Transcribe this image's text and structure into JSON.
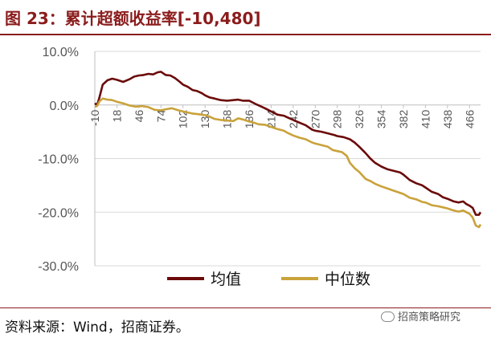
{
  "title": "图 23：累计超额收益率[-10,480]",
  "source": "资料来源：Wind，招商证券。",
  "watermark": {
    "text": "招商策略研究",
    "icon": "wechat-icon"
  },
  "colors": {
    "title": "#8b1c1c",
    "mean": "#6b0a0a",
    "median": "#c9a23a",
    "grid": "#d9d9d9",
    "axis": "#bfbfbf"
  },
  "chart_data": {
    "type": "line",
    "title": "",
    "xlabel": "",
    "ylabel": "",
    "xlim": [
      -10,
      480
    ],
    "ylim": [
      -30,
      10
    ],
    "y_unit": "%",
    "y_ticks": [
      10,
      0,
      -10,
      -20,
      -30
    ],
    "y_tick_labels": [
      "10.0%",
      "0.0%",
      "-10.0%",
      "-20.0%",
      "-30.0%"
    ],
    "x_ticks": [
      -10,
      18,
      46,
      74,
      102,
      130,
      158,
      186,
      214,
      242,
      270,
      298,
      326,
      354,
      382,
      410,
      438,
      466
    ],
    "x_tick_labels": [
      "-10",
      "18",
      "46",
      "74",
      "102",
      "130",
      "158",
      "186",
      "214",
      "242",
      "270",
      "298",
      "326",
      "354",
      "382",
      "410",
      "438",
      "466"
    ],
    "grid": {
      "horizontal": true,
      "vertical": false
    },
    "legend": {
      "position": "bottom"
    },
    "series": [
      {
        "name": "均值",
        "color": "#6b0a0a",
        "points": [
          [
            -10,
            0.3
          ],
          [
            -7,
            0.0
          ],
          [
            -4,
            1.5
          ],
          [
            0,
            3.8
          ],
          [
            6,
            4.6
          ],
          [
            12,
            4.9
          ],
          [
            18,
            4.7
          ],
          [
            26,
            4.3
          ],
          [
            34,
            4.8
          ],
          [
            40,
            5.3
          ],
          [
            46,
            5.5
          ],
          [
            52,
            5.6
          ],
          [
            58,
            5.8
          ],
          [
            64,
            5.7
          ],
          [
            70,
            6.1
          ],
          [
            74,
            6.2
          ],
          [
            80,
            5.6
          ],
          [
            86,
            5.5
          ],
          [
            92,
            5.0
          ],
          [
            98,
            4.3
          ],
          [
            102,
            3.8
          ],
          [
            108,
            3.4
          ],
          [
            114,
            2.8
          ],
          [
            120,
            2.6
          ],
          [
            126,
            2.2
          ],
          [
            130,
            1.8
          ],
          [
            136,
            1.4
          ],
          [
            142,
            1.2
          ],
          [
            150,
            0.9
          ],
          [
            158,
            0.8
          ],
          [
            166,
            0.9
          ],
          [
            172,
            1.0
          ],
          [
            178,
            0.8
          ],
          [
            186,
            0.8
          ],
          [
            194,
            0.2
          ],
          [
            200,
            -0.2
          ],
          [
            206,
            -0.6
          ],
          [
            214,
            -1.2
          ],
          [
            222,
            -1.8
          ],
          [
            230,
            -2.0
          ],
          [
            236,
            -2.4
          ],
          [
            242,
            -2.8
          ],
          [
            250,
            -3.3
          ],
          [
            258,
            -3.8
          ],
          [
            266,
            -4.6
          ],
          [
            270,
            -4.8
          ],
          [
            278,
            -5.0
          ],
          [
            286,
            -5.3
          ],
          [
            294,
            -5.6
          ],
          [
            298,
            -5.8
          ],
          [
            306,
            -6.0
          ],
          [
            314,
            -6.4
          ],
          [
            320,
            -7.0
          ],
          [
            326,
            -7.8
          ],
          [
            334,
            -9.0
          ],
          [
            340,
            -10.0
          ],
          [
            346,
            -10.8
          ],
          [
            354,
            -11.5
          ],
          [
            362,
            -12.0
          ],
          [
            370,
            -12.3
          ],
          [
            378,
            -12.6
          ],
          [
            382,
            -13.0
          ],
          [
            390,
            -14.0
          ],
          [
            398,
            -14.6
          ],
          [
            406,
            -15.0
          ],
          [
            410,
            -15.4
          ],
          [
            418,
            -16.2
          ],
          [
            426,
            -16.6
          ],
          [
            432,
            -17.2
          ],
          [
            438,
            -17.5
          ],
          [
            446,
            -18.0
          ],
          [
            452,
            -18.2
          ],
          [
            458,
            -18.0
          ],
          [
            462,
            -18.5
          ],
          [
            466,
            -18.8
          ],
          [
            470,
            -19.2
          ],
          [
            474,
            -20.5
          ],
          [
            478,
            -20.5
          ],
          [
            480,
            -20.0
          ]
        ]
      },
      {
        "name": "中位数",
        "color": "#c9a23a",
        "points": [
          [
            -10,
            -0.3
          ],
          [
            -7,
            -0.2
          ],
          [
            -4,
            0.7
          ],
          [
            0,
            1.2
          ],
          [
            6,
            1.0
          ],
          [
            12,
            0.9
          ],
          [
            18,
            0.6
          ],
          [
            26,
            0.3
          ],
          [
            34,
            -0.1
          ],
          [
            42,
            -0.3
          ],
          [
            50,
            -0.2
          ],
          [
            58,
            -0.4
          ],
          [
            66,
            -0.9
          ],
          [
            74,
            -1.0
          ],
          [
            80,
            -0.8
          ],
          [
            88,
            -0.6
          ],
          [
            96,
            -1.0
          ],
          [
            102,
            -1.2
          ],
          [
            108,
            -1.4
          ],
          [
            114,
            -1.6
          ],
          [
            120,
            -1.7
          ],
          [
            126,
            -1.8
          ],
          [
            130,
            -1.9
          ],
          [
            136,
            -2.2
          ],
          [
            142,
            -2.6
          ],
          [
            150,
            -2.8
          ],
          [
            158,
            -2.9
          ],
          [
            166,
            -3.0
          ],
          [
            172,
            -2.5
          ],
          [
            178,
            -2.7
          ],
          [
            186,
            -3.1
          ],
          [
            192,
            -3.3
          ],
          [
            198,
            -3.6
          ],
          [
            206,
            -3.7
          ],
          [
            214,
            -4.1
          ],
          [
            222,
            -4.5
          ],
          [
            230,
            -4.8
          ],
          [
            236,
            -5.3
          ],
          [
            242,
            -5.7
          ],
          [
            250,
            -6.1
          ],
          [
            258,
            -6.4
          ],
          [
            266,
            -7.0
          ],
          [
            270,
            -7.2
          ],
          [
            278,
            -7.5
          ],
          [
            286,
            -7.8
          ],
          [
            292,
            -8.4
          ],
          [
            298,
            -8.6
          ],
          [
            304,
            -8.8
          ],
          [
            310,
            -9.5
          ],
          [
            314,
            -10.8
          ],
          [
            320,
            -11.8
          ],
          [
            326,
            -12.5
          ],
          [
            334,
            -13.8
          ],
          [
            340,
            -14.2
          ],
          [
            346,
            -14.7
          ],
          [
            354,
            -15.2
          ],
          [
            362,
            -15.6
          ],
          [
            370,
            -16.0
          ],
          [
            376,
            -16.3
          ],
          [
            382,
            -16.6
          ],
          [
            390,
            -17.3
          ],
          [
            398,
            -17.6
          ],
          [
            406,
            -18.1
          ],
          [
            410,
            -18.2
          ],
          [
            418,
            -18.7
          ],
          [
            426,
            -18.9
          ],
          [
            432,
            -19.1
          ],
          [
            438,
            -19.3
          ],
          [
            444,
            -19.6
          ],
          [
            452,
            -19.9
          ],
          [
            458,
            -19.7
          ],
          [
            462,
            -20.0
          ],
          [
            466,
            -20.3
          ],
          [
            470,
            -21.0
          ],
          [
            474,
            -22.5
          ],
          [
            478,
            -22.8
          ],
          [
            480,
            -22.3
          ]
        ]
      }
    ]
  }
}
